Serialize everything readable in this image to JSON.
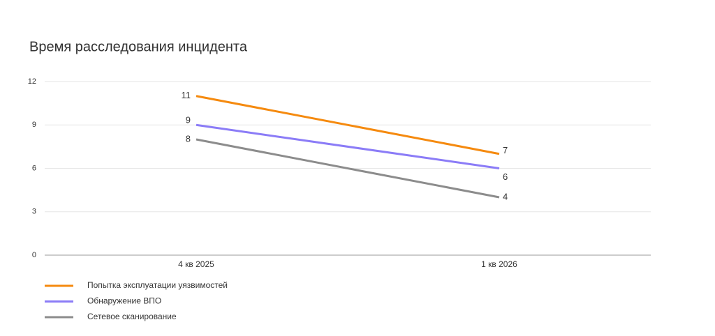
{
  "chart_data": {
    "type": "line",
    "title": "Время расследования инцидента",
    "categories": [
      "4 кв 2025",
      "1 кв 2026"
    ],
    "series": [
      {
        "name": "Попытка эксплуатации уязвимостей",
        "color": "#f58a0f",
        "values": [
          11,
          7
        ]
      },
      {
        "name": "Обнаружение ВПО",
        "color": "#8b7cf7",
        "values": [
          9,
          6
        ]
      },
      {
        "name": "Сетевое сканирование",
        "color": "#8c8c8c",
        "values": [
          8,
          4
        ]
      }
    ],
    "ylim": [
      0,
      12
    ],
    "yticks": [
      0,
      3,
      6,
      9,
      12
    ],
    "grid": true,
    "legend": "bottom-left"
  }
}
